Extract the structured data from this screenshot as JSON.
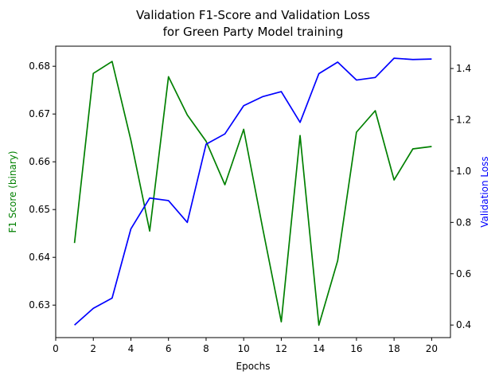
{
  "chart_data": {
    "type": "line",
    "title_lines": [
      "Validation F1-Score and Validation Loss",
      "for Green Party Model training"
    ],
    "xlabel": "Epochs",
    "ylabel_left": "F1 Score (binary)",
    "ylabel_right": "Validation Loss",
    "left_color": "#008000",
    "right_color": "#0000ff",
    "xlim": [
      0,
      21
    ],
    "ylim_left": [
      0.6232,
      0.6842
    ],
    "ylim_right": [
      0.351,
      1.487
    ],
    "x_ticks": [
      0,
      2,
      4,
      6,
      8,
      10,
      12,
      14,
      16,
      18,
      20
    ],
    "y_ticks_left": [
      0.63,
      0.64,
      0.65,
      0.66,
      0.67,
      0.68
    ],
    "y_ticks_right": [
      0.4,
      0.6,
      0.8,
      1.0,
      1.2,
      1.4
    ],
    "x": [
      1,
      2,
      3,
      4,
      5,
      6,
      7,
      8,
      9,
      10,
      11,
      12,
      13,
      14,
      15,
      16,
      17,
      18,
      19,
      20
    ],
    "series": [
      {
        "axis": "left",
        "color": "#008000",
        "values": [
          0.643,
          0.6785,
          0.681,
          0.6645,
          0.6455,
          0.6778,
          0.6698,
          0.6643,
          0.6552,
          0.6668,
          0.6463,
          0.6265,
          0.6655,
          0.6258,
          0.6393,
          0.6662,
          0.6707,
          0.6562,
          0.6627,
          0.6632
        ]
      },
      {
        "axis": "right",
        "color": "#0000ff",
        "values": [
          0.4,
          0.465,
          0.505,
          0.775,
          0.895,
          0.885,
          0.8,
          1.105,
          1.145,
          1.255,
          1.29,
          1.31,
          1.19,
          1.38,
          1.425,
          1.355,
          1.365,
          1.44,
          1.435,
          1.437
        ]
      }
    ],
    "grid": false
  }
}
